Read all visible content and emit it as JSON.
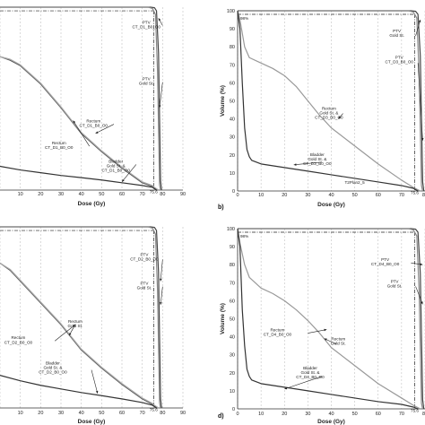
{
  "figure": {
    "title": ""
  },
  "chart_data": [
    {
      "panel": "a",
      "type": "line",
      "xlabel": "Dose (Gy)",
      "ylabel": "",
      "panel_label": "",
      "xlim": [
        0,
        90
      ],
      "ylim": [
        0,
        100
      ],
      "x_ticks": [
        "10",
        "20",
        "30",
        "40",
        "50",
        "60",
        "70",
        "80",
        "90"
      ],
      "y_ticks": [],
      "grid": "vertical dashed",
      "reference": {
        "y": 98,
        "x": 75.6,
        "x_label": "75.6",
        "y_label": ""
      },
      "series": [
        {
          "x": [
            0,
            74,
            76,
            77,
            78,
            79,
            79.5
          ],
          "y": [
            100,
            100,
            99.7,
            98,
            75,
            5,
            0
          ],
          "color": "#444"
        },
        {
          "x": [
            0,
            73,
            75,
            76.5,
            77.5,
            78.5,
            79
          ],
          "y": [
            100,
            100,
            99.3,
            96,
            65,
            3,
            0
          ],
          "color": "#888"
        },
        {
          "x": [
            0,
            5,
            10,
            20,
            30,
            35,
            40,
            50,
            60,
            70,
            75,
            76,
            78
          ],
          "y": [
            73,
            71,
            68,
            58,
            45,
            38,
            31,
            21,
            12,
            4,
            2,
            1,
            0
          ],
          "color": "#555"
        },
        {
          "x": [
            0,
            5,
            10,
            20,
            30,
            35,
            40,
            50,
            60,
            70,
            75,
            76,
            78
          ],
          "y": [
            73,
            71.5,
            68.5,
            58.5,
            45.5,
            38.5,
            31.5,
            21.5,
            12.5,
            4.5,
            2.5,
            1.5,
            0
          ],
          "color": "#aaa"
        },
        {
          "x": [
            0,
            10,
            20,
            30,
            40,
            50,
            60,
            70,
            75,
            77
          ],
          "y": [
            13,
            11,
            9.5,
            8,
            6.8,
            5.5,
            4,
            2.5,
            1.5,
            0
          ],
          "color": "#333"
        }
      ],
      "annotations": [
        {
          "text": "PTV",
          "x": 72,
          "y": 91
        },
        {
          "text": "CT_D1_B0_O0",
          "x": 72,
          "y": 88.5
        },
        {
          "text": "PTV",
          "x": 72,
          "y": 60
        },
        {
          "text": "Gold St.",
          "x": 72,
          "y": 57.5
        },
        {
          "text": "Rectum",
          "x": 46,
          "y": 37
        },
        {
          "text": "CT_D1_B0_O0",
          "x": 46,
          "y": 34.5
        },
        {
          "text": "Rectum",
          "x": 29,
          "y": 25
        },
        {
          "text": "CT_D1_B0_O0",
          "x": 29,
          "y": 22.5
        },
        {
          "text": "Bladder",
          "x": 57,
          "y": 15
        },
        {
          "text": "Gold St. &",
          "x": 57,
          "y": 12.5
        },
        {
          "text": "CT_D1_B0_O0",
          "x": 57,
          "y": 10
        }
      ],
      "arrows": [
        [
          80,
          90,
          78,
          94
        ],
        [
          80,
          59,
          78.5,
          45
        ],
        [
          56,
          36,
          47,
          31
        ],
        [
          44,
          24,
          36,
          38
        ],
        [
          67,
          14,
          60,
          4.5
        ]
      ]
    },
    {
      "panel": "b",
      "type": "line",
      "xlabel": "Dose (Gy)",
      "ylabel": "Volume (%)",
      "panel_label": "b)",
      "xlim": [
        0,
        80
      ],
      "ylim": [
        0,
        100
      ],
      "x_ticks": [
        "0",
        "10",
        "20",
        "30",
        "40",
        "50",
        "60",
        "70",
        "80"
      ],
      "y_ticks": [
        "0",
        "10",
        "20",
        "30",
        "40",
        "50",
        "60",
        "70",
        "80",
        "90",
        "100"
      ],
      "grid": "vertical dashed",
      "reference": {
        "y": 98,
        "x": 75.6,
        "x_label": "75.6",
        "y_label": "98%"
      },
      "series": [
        {
          "x": [
            0,
            74,
            76,
            77,
            78,
            79,
            79.5
          ],
          "y": [
            100,
            100,
            99.7,
            98,
            75,
            5,
            0
          ],
          "color": "#444"
        },
        {
          "x": [
            0,
            73,
            75,
            76.5,
            77.5,
            78.5,
            79
          ],
          "y": [
            100,
            100,
            99.3,
            96,
            65,
            3,
            0
          ],
          "color": "#888"
        },
        {
          "x": [
            0,
            1,
            3,
            5,
            10,
            15,
            20,
            25,
            30,
            35,
            40,
            50,
            60,
            70,
            75,
            78
          ],
          "y": [
            100,
            95,
            80,
            74,
            71,
            68,
            64,
            58,
            50,
            42,
            35,
            25,
            15,
            6,
            2,
            0
          ],
          "color": "#999"
        },
        {
          "x": [
            0,
            1,
            2,
            3,
            4,
            5,
            6,
            8,
            10,
            20,
            30,
            40,
            50,
            60,
            70,
            75,
            77
          ],
          "y": [
            100,
            90,
            60,
            35,
            23,
            19,
            17,
            16,
            15,
            13,
            11,
            9,
            7,
            5,
            3,
            1.5,
            0
          ],
          "color": "#333"
        }
      ],
      "annotations": [
        {
          "text": "PTV",
          "x": 68,
          "y": 88
        },
        {
          "text": "Gold St.",
          "x": 68,
          "y": 85.5
        },
        {
          "text": "PTV",
          "x": 69,
          "y": 73.5
        },
        {
          "text": "CT_D3_B0_O0",
          "x": 69,
          "y": 71
        },
        {
          "text": "Rectum",
          "x": 39,
          "y": 45
        },
        {
          "text": "Gold St. &",
          "x": 39,
          "y": 42.5
        },
        {
          "text": "CT_D3_B0_O0",
          "x": 39,
          "y": 40
        },
        {
          "text": "Bladder",
          "x": 34,
          "y": 19.5
        },
        {
          "text": "Gold St. &",
          "x": 34,
          "y": 17
        },
        {
          "text": "CT_D3_B0_O0",
          "x": 34,
          "y": 14.5
        },
        {
          "text": "T2Plan2_5",
          "x": 50,
          "y": 4
        }
      ],
      "arrows": [
        [
          76,
          86,
          78,
          95
        ],
        [
          77,
          71,
          79,
          28
        ],
        [
          45,
          43,
          43,
          40
        ],
        [
          36,
          16,
          24,
          14.5
        ]
      ]
    },
    {
      "panel": "c",
      "type": "line",
      "xlabel": "Dose (Gy)",
      "ylabel": "",
      "panel_label": "",
      "xlim": [
        0,
        90
      ],
      "ylim": [
        0,
        100
      ],
      "x_ticks": [
        "10",
        "20",
        "30",
        "40",
        "50",
        "60",
        "70",
        "80",
        "90"
      ],
      "y_ticks": [],
      "grid": "vertical dashed",
      "reference": {
        "y": 98,
        "x": 75.6,
        "x_label": "75.6",
        "y_label": ""
      },
      "series": [
        {
          "x": [
            0,
            74,
            76,
            77,
            78,
            79,
            79.5
          ],
          "y": [
            100,
            100,
            99.7,
            98,
            75,
            5,
            0
          ],
          "color": "#444"
        },
        {
          "x": [
            0,
            73,
            75,
            76.5,
            77.5,
            78.5,
            79
          ],
          "y": [
            100,
            100,
            99.3,
            96,
            65,
            3,
            0
          ],
          "color": "#888"
        },
        {
          "x": [
            0,
            5,
            10,
            20,
            30,
            35,
            40,
            50,
            60,
            70,
            75,
            76,
            78
          ],
          "y": [
            80,
            76,
            70,
            58,
            46,
            39,
            32,
            22,
            13,
            5,
            2,
            1,
            0
          ],
          "color": "#555"
        },
        {
          "x": [
            0,
            5,
            10,
            20,
            30,
            35,
            40,
            50,
            60,
            70,
            75,
            76,
            78
          ],
          "y": [
            80,
            76.5,
            70.5,
            58.5,
            46.5,
            39.5,
            32.5,
            22.5,
            13.5,
            5.5,
            2.5,
            1.5,
            0
          ],
          "color": "#aaa"
        },
        {
          "x": [
            0,
            10,
            20,
            30,
            40,
            50,
            60,
            70,
            75,
            77
          ],
          "y": [
            18,
            15,
            12.5,
            10.5,
            8.5,
            6.8,
            5,
            3,
            1.5,
            0
          ],
          "color": "#333"
        }
      ],
      "annotations": [
        {
          "text": "PTV",
          "x": 71,
          "y": 84
        },
        {
          "text": "CT_D2_B0_O0",
          "x": 71,
          "y": 81.5
        },
        {
          "text": "PTV",
          "x": 71,
          "y": 68
        },
        {
          "text": "Gold St.",
          "x": 71,
          "y": 65.5
        },
        {
          "text": "Rectum",
          "x": 37,
          "y": 47
        },
        {
          "text": "Gold St.",
          "x": 37,
          "y": 44.5
        },
        {
          "text": "Rectum",
          "x": 9,
          "y": 38
        },
        {
          "text": "CT_D2_B0_O0",
          "x": 9,
          "y": 35.5
        },
        {
          "text": "Bladder",
          "x": 26,
          "y": 24
        },
        {
          "text": "Gold St. &",
          "x": 26,
          "y": 21.5
        },
        {
          "text": "CT_D2_B0_O0",
          "x": 26,
          "y": 19
        }
      ],
      "arrows": [
        [
          80,
          82,
          79,
          70
        ],
        [
          80,
          67,
          79,
          57
        ],
        [
          37,
          46,
          34,
          40
        ],
        [
          27,
          37,
          37,
          46
        ],
        [
          45,
          21,
          48,
          8
        ]
      ]
    },
    {
      "panel": "d",
      "type": "line",
      "xlabel": "Dose (Gy)",
      "ylabel": "Volume (%)",
      "panel_label": "d)",
      "xlim": [
        0,
        80
      ],
      "ylim": [
        0,
        100
      ],
      "x_ticks": [
        "0",
        "10",
        "20",
        "30",
        "40",
        "50",
        "60",
        "70",
        "80"
      ],
      "y_ticks": [
        "0",
        "10",
        "20",
        "30",
        "40",
        "50",
        "60",
        "70",
        "80",
        "90",
        "100"
      ],
      "grid": "vertical dashed",
      "reference": {
        "y": 98,
        "x": 75.6,
        "x_label": "75.6",
        "y_label": "98%"
      },
      "series": [
        {
          "x": [
            0,
            74,
            76,
            77,
            78,
            79,
            79.5
          ],
          "y": [
            100,
            100,
            99.7,
            98,
            75,
            5,
            0
          ],
          "color": "#444"
        },
        {
          "x": [
            0,
            73,
            75,
            76.5,
            77.5,
            78.5,
            79
          ],
          "y": [
            100,
            100,
            99.3,
            96,
            65,
            3,
            0
          ],
          "color": "#888"
        },
        {
          "x": [
            0,
            1,
            3,
            5,
            10,
            15,
            20,
            25,
            30,
            35,
            40,
            50,
            60,
            70,
            75,
            78
          ],
          "y": [
            100,
            92,
            80,
            73,
            67,
            64,
            60,
            55,
            49,
            42,
            34,
            24,
            14,
            6,
            2,
            0
          ],
          "color": "#999"
        },
        {
          "x": [
            0,
            1,
            2,
            3,
            4,
            5,
            6,
            8,
            10,
            20,
            30,
            40,
            50,
            60,
            70,
            75,
            77
          ],
          "y": [
            100,
            90,
            55,
            35,
            22,
            18,
            16,
            15,
            14,
            12,
            10,
            8,
            6,
            4,
            2.5,
            1,
            0
          ],
          "color": "#333"
        }
      ],
      "annotations": [
        {
          "text": "PTV",
          "x": 63,
          "y": 82
        },
        {
          "text": "CT_D4_B0_O0",
          "x": 63,
          "y": 79.5
        },
        {
          "text": "PTV",
          "x": 67,
          "y": 70
        },
        {
          "text": "Gold St.",
          "x": 67,
          "y": 67.5
        },
        {
          "text": "Rectum",
          "x": 17,
          "y": 43
        },
        {
          "text": "CT_D4_B0_O0",
          "x": 17,
          "y": 40.5
        },
        {
          "text": "Rectum",
          "x": 43,
          "y": 38
        },
        {
          "text": "Gold St.",
          "x": 43,
          "y": 35.5
        },
        {
          "text": "Bladder",
          "x": 31,
          "y": 22
        },
        {
          "text": "Gold St. &",
          "x": 31,
          "y": 19.5
        },
        {
          "text": "CT_D4_B0_O0",
          "x": 31,
          "y": 17
        }
      ],
      "arrows": [
        [
          74,
          81,
          79,
          80
        ],
        [
          76,
          68,
          79,
          58
        ],
        [
          30,
          42,
          38,
          44
        ],
        [
          42,
          36,
          37,
          39
        ],
        [
          36,
          18,
          20,
          11
        ]
      ]
    }
  ]
}
